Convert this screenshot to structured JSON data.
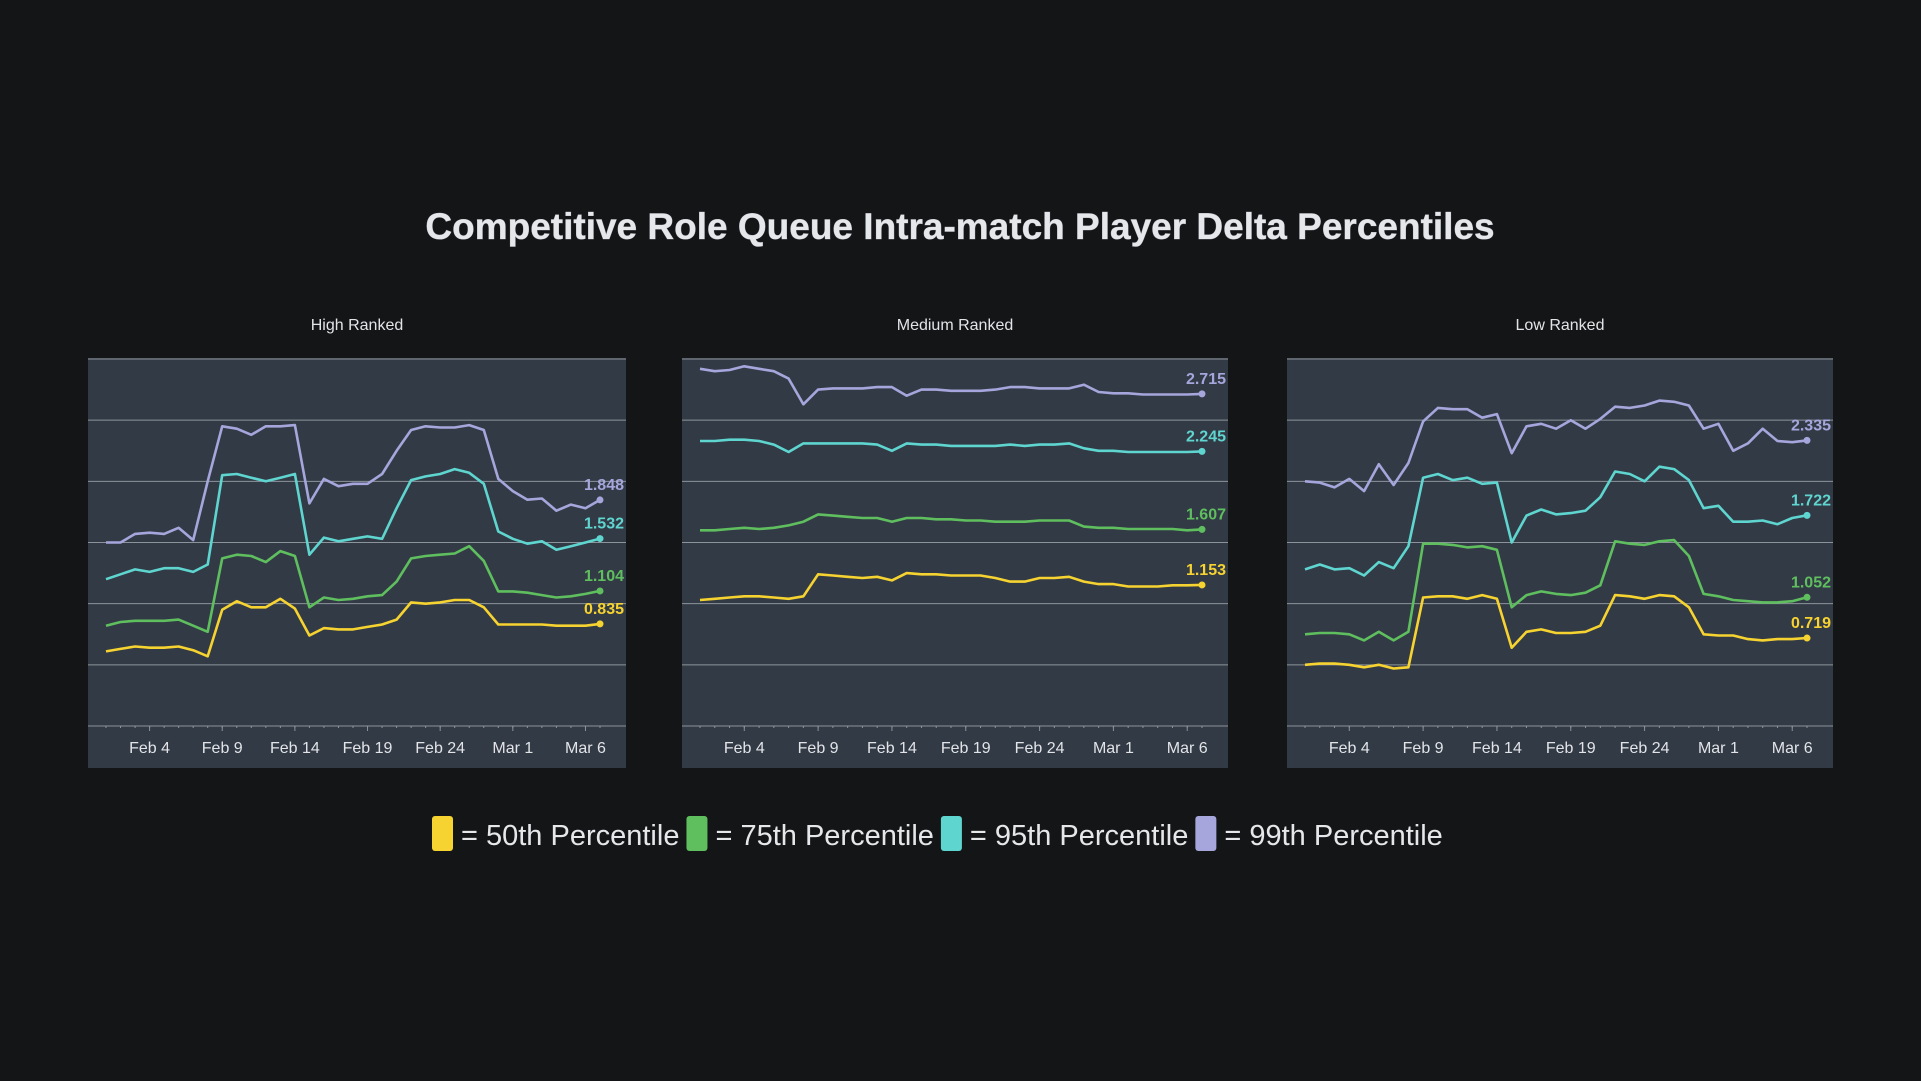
{
  "title": "Competitive Role Queue Intra-match Player Delta Percentiles",
  "colors": {
    "background": "#141517",
    "plot_background": "#323a45",
    "grid": "#8d939b",
    "p50": "#f6d330",
    "p75": "#5fbf5f",
    "p95": "#5fd5d0",
    "p99": "#a6a6dc"
  },
  "legend": [
    {
      "key": "p50",
      "label": "= 50th Percentile"
    },
    {
      "key": "p75",
      "label": "= 75th Percentile"
    },
    {
      "key": "p95",
      "label": "= 95th Percentile"
    },
    {
      "key": "p99",
      "label": "= 99th Percentile"
    }
  ],
  "chart_data": [
    {
      "type": "line",
      "title": "High Ranked",
      "xlabel": "",
      "ylabel": "",
      "x_ticks": [
        "Feb 4",
        "Feb 9",
        "Feb 14",
        "Feb 19",
        "Feb 24",
        "Mar 1",
        "Mar 6"
      ],
      "grid": true,
      "ylim": [
        0,
        3
      ],
      "days": [
        "Feb 1",
        "Feb 2",
        "Feb 3",
        "Feb 4",
        "Feb 5",
        "Feb 6",
        "Feb 7",
        "Feb 8",
        "Feb 9",
        "Feb 10",
        "Feb 11",
        "Feb 12",
        "Feb 13",
        "Feb 14",
        "Feb 15",
        "Feb 16",
        "Feb 17",
        "Feb 18",
        "Feb 19",
        "Feb 20",
        "Feb 21",
        "Feb 22",
        "Feb 23",
        "Feb 24",
        "Feb 25",
        "Feb 26",
        "Feb 27",
        "Feb 28",
        "Mar 1",
        "Mar 2",
        "Mar 3",
        "Mar 4",
        "Mar 5",
        "Mar 6",
        "Mar 7"
      ],
      "series": [
        {
          "key": "p99",
          "end_label": "1.848",
          "values": [
            1.5,
            1.5,
            1.57,
            1.58,
            1.57,
            1.62,
            1.52,
            2.0,
            2.45,
            2.43,
            2.38,
            2.45,
            2.45,
            2.46,
            1.82,
            2.02,
            1.96,
            1.98,
            1.98,
            2.06,
            2.25,
            2.42,
            2.45,
            2.44,
            2.44,
            2.46,
            2.42,
            2.02,
            1.92,
            1.85,
            1.86,
            1.76,
            1.81,
            1.78,
            1.848
          ]
        },
        {
          "key": "p95",
          "end_label": "1.532",
          "values": [
            1.2,
            1.24,
            1.28,
            1.26,
            1.29,
            1.29,
            1.26,
            1.32,
            2.05,
            2.06,
            2.03,
            2.0,
            2.03,
            2.06,
            1.4,
            1.54,
            1.51,
            1.53,
            1.55,
            1.53,
            1.78,
            2.01,
            2.04,
            2.06,
            2.1,
            2.07,
            1.98,
            1.59,
            1.53,
            1.49,
            1.51,
            1.44,
            1.47,
            1.5,
            1.532
          ]
        },
        {
          "key": "p75",
          "end_label": "1.104",
          "values": [
            0.82,
            0.85,
            0.86,
            0.86,
            0.86,
            0.87,
            0.82,
            0.77,
            1.37,
            1.4,
            1.39,
            1.34,
            1.43,
            1.39,
            0.97,
            1.05,
            1.03,
            1.04,
            1.06,
            1.07,
            1.18,
            1.37,
            1.39,
            1.4,
            1.41,
            1.47,
            1.35,
            1.1,
            1.1,
            1.09,
            1.07,
            1.05,
            1.06,
            1.08,
            1.104
          ]
        },
        {
          "key": "p50",
          "end_label": "0.835",
          "values": [
            0.61,
            0.63,
            0.65,
            0.64,
            0.64,
            0.65,
            0.62,
            0.57,
            0.95,
            1.02,
            0.97,
            0.97,
            1.04,
            0.96,
            0.74,
            0.8,
            0.79,
            0.79,
            0.81,
            0.83,
            0.87,
            1.01,
            1.0,
            1.01,
            1.03,
            1.03,
            0.97,
            0.83,
            0.83,
            0.83,
            0.83,
            0.82,
            0.82,
            0.82,
            0.835
          ]
        }
      ]
    },
    {
      "type": "line",
      "title": "Medium Ranked",
      "xlabel": "",
      "ylabel": "",
      "x_ticks": [
        "Feb 4",
        "Feb 9",
        "Feb 14",
        "Feb 19",
        "Feb 24",
        "Mar 1",
        "Mar 6"
      ],
      "grid": true,
      "ylim": [
        0,
        3
      ],
      "days": [
        "Feb 1",
        "Feb 2",
        "Feb 3",
        "Feb 4",
        "Feb 5",
        "Feb 6",
        "Feb 7",
        "Feb 8",
        "Feb 9",
        "Feb 10",
        "Feb 11",
        "Feb 12",
        "Feb 13",
        "Feb 14",
        "Feb 15",
        "Feb 16",
        "Feb 17",
        "Feb 18",
        "Feb 19",
        "Feb 20",
        "Feb 21",
        "Feb 22",
        "Feb 23",
        "Feb 24",
        "Feb 25",
        "Feb 26",
        "Feb 27",
        "Feb 28",
        "Mar 1",
        "Mar 2",
        "Mar 3",
        "Mar 4",
        "Mar 5",
        "Mar 6",
        "Mar 7"
      ],
      "series": [
        {
          "key": "p99",
          "end_label": "2.715",
          "values": [
            2.92,
            2.9,
            2.91,
            2.94,
            2.92,
            2.9,
            2.84,
            2.63,
            2.75,
            2.76,
            2.76,
            2.76,
            2.77,
            2.77,
            2.7,
            2.75,
            2.75,
            2.74,
            2.74,
            2.74,
            2.75,
            2.77,
            2.77,
            2.76,
            2.76,
            2.76,
            2.79,
            2.73,
            2.72,
            2.72,
            2.71,
            2.71,
            2.71,
            2.71,
            2.715
          ]
        },
        {
          "key": "p95",
          "end_label": "2.245",
          "values": [
            2.33,
            2.33,
            2.34,
            2.34,
            2.33,
            2.3,
            2.24,
            2.31,
            2.31,
            2.31,
            2.31,
            2.31,
            2.3,
            2.25,
            2.31,
            2.3,
            2.3,
            2.29,
            2.29,
            2.29,
            2.29,
            2.3,
            2.29,
            2.3,
            2.3,
            2.31,
            2.27,
            2.25,
            2.25,
            2.24,
            2.24,
            2.24,
            2.24,
            2.24,
            2.245
          ]
        },
        {
          "key": "p75",
          "end_label": "1.607",
          "values": [
            1.6,
            1.6,
            1.61,
            1.62,
            1.61,
            1.62,
            1.64,
            1.67,
            1.73,
            1.72,
            1.71,
            1.7,
            1.7,
            1.67,
            1.7,
            1.7,
            1.69,
            1.69,
            1.68,
            1.68,
            1.67,
            1.67,
            1.67,
            1.68,
            1.68,
            1.68,
            1.63,
            1.62,
            1.62,
            1.61,
            1.61,
            1.61,
            1.61,
            1.6,
            1.607
          ]
        },
        {
          "key": "p50",
          "end_label": "1.153",
          "values": [
            1.03,
            1.04,
            1.05,
            1.06,
            1.06,
            1.05,
            1.04,
            1.06,
            1.24,
            1.23,
            1.22,
            1.21,
            1.22,
            1.19,
            1.25,
            1.24,
            1.24,
            1.23,
            1.23,
            1.23,
            1.21,
            1.18,
            1.18,
            1.21,
            1.21,
            1.22,
            1.18,
            1.16,
            1.16,
            1.14,
            1.14,
            1.14,
            1.15,
            1.15,
            1.153
          ]
        }
      ]
    },
    {
      "type": "line",
      "title": "Low Ranked",
      "xlabel": "",
      "ylabel": "",
      "x_ticks": [
        "Feb 4",
        "Feb 9",
        "Feb 14",
        "Feb 19",
        "Feb 24",
        "Mar 1",
        "Mar 6"
      ],
      "grid": true,
      "ylim": [
        0,
        3
      ],
      "days": [
        "Feb 1",
        "Feb 2",
        "Feb 3",
        "Feb 4",
        "Feb 5",
        "Feb 6",
        "Feb 7",
        "Feb 8",
        "Feb 9",
        "Feb 10",
        "Feb 11",
        "Feb 12",
        "Feb 13",
        "Feb 14",
        "Feb 15",
        "Feb 16",
        "Feb 17",
        "Feb 18",
        "Feb 19",
        "Feb 20",
        "Feb 21",
        "Feb 22",
        "Feb 23",
        "Feb 24",
        "Feb 25",
        "Feb 26",
        "Feb 27",
        "Feb 28",
        "Mar 1",
        "Mar 2",
        "Mar 3",
        "Mar 4",
        "Mar 5",
        "Mar 6",
        "Mar 7"
      ],
      "series": [
        {
          "key": "p99",
          "end_label": "2.335",
          "values": [
            2.0,
            1.99,
            1.95,
            2.02,
            1.92,
            2.14,
            1.97,
            2.15,
            2.49,
            2.6,
            2.59,
            2.59,
            2.52,
            2.55,
            2.23,
            2.45,
            2.47,
            2.43,
            2.5,
            2.43,
            2.51,
            2.61,
            2.6,
            2.62,
            2.66,
            2.65,
            2.62,
            2.43,
            2.47,
            2.25,
            2.31,
            2.43,
            2.33,
            2.32,
            2.335
          ]
        },
        {
          "key": "p95",
          "end_label": "1.722",
          "values": [
            1.28,
            1.32,
            1.28,
            1.29,
            1.23,
            1.34,
            1.29,
            1.47,
            2.03,
            2.06,
            2.01,
            2.03,
            1.98,
            1.99,
            1.5,
            1.72,
            1.77,
            1.73,
            1.74,
            1.76,
            1.87,
            2.08,
            2.06,
            2.0,
            2.12,
            2.1,
            2.01,
            1.78,
            1.8,
            1.67,
            1.67,
            1.68,
            1.65,
            1.7,
            1.722
          ]
        },
        {
          "key": "p75",
          "end_label": "1.052",
          "values": [
            0.75,
            0.76,
            0.76,
            0.75,
            0.7,
            0.77,
            0.7,
            0.77,
            1.49,
            1.49,
            1.48,
            1.46,
            1.47,
            1.44,
            0.97,
            1.07,
            1.1,
            1.08,
            1.07,
            1.09,
            1.15,
            1.51,
            1.49,
            1.48,
            1.51,
            1.52,
            1.39,
            1.08,
            1.06,
            1.03,
            1.02,
            1.01,
            1.01,
            1.02,
            1.052
          ]
        },
        {
          "key": "p50",
          "end_label": "0.719",
          "values": [
            0.5,
            0.51,
            0.51,
            0.5,
            0.48,
            0.5,
            0.47,
            0.48,
            1.05,
            1.06,
            1.06,
            1.04,
            1.07,
            1.04,
            0.64,
            0.77,
            0.79,
            0.76,
            0.76,
            0.77,
            0.82,
            1.07,
            1.06,
            1.04,
            1.07,
            1.06,
            0.97,
            0.75,
            0.74,
            0.74,
            0.71,
            0.7,
            0.71,
            0.71,
            0.719
          ]
        }
      ]
    }
  ]
}
